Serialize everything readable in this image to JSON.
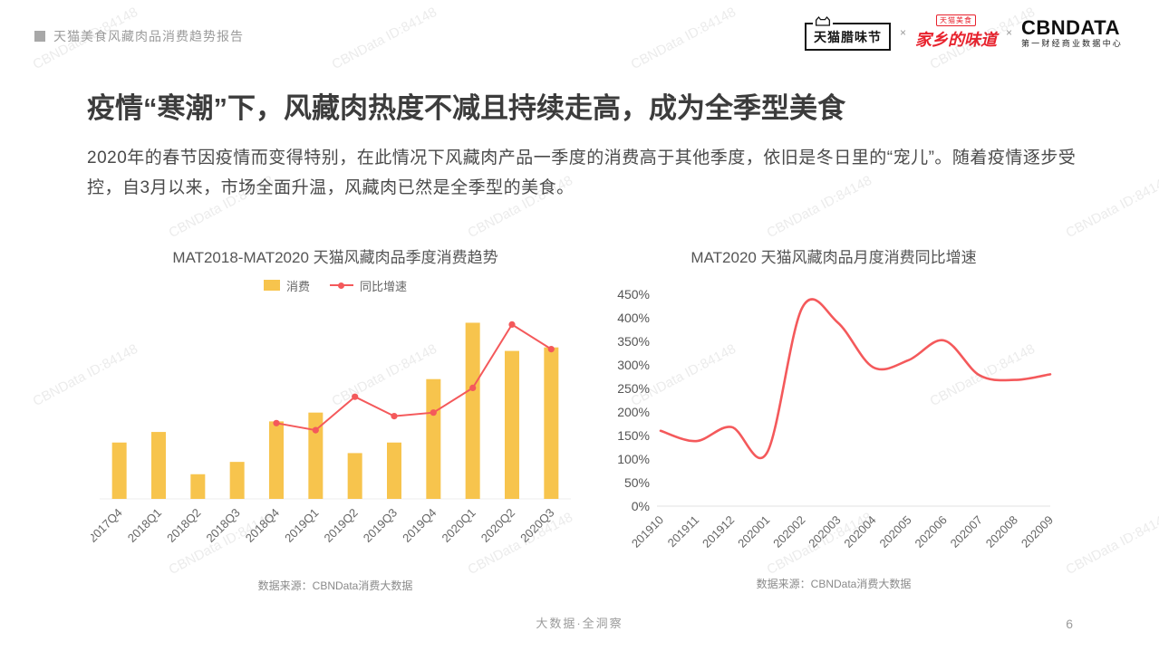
{
  "header": {
    "report_title": "天猫美食风藏肉品消费趋势报告"
  },
  "logos": {
    "tmall_festival": "天猫腊味节",
    "multiply": "×",
    "hometown_tag": "天猫美食",
    "hometown": "家乡的味道",
    "cbndata": "CBNDATA",
    "cbndata_subtitle": "第一财经商业数据中心"
  },
  "headline": {
    "title": "疫情“寒潮”下，风藏肉热度不减且持续走高，成为全季型美食",
    "body": "2020年的春节因疫情而变得特别，在此情况下风藏肉产品一季度的消费高于其他季度，依旧是冬日里的“宠儿”。随着疫情逐步受控，自3月以来，市场全面升温，风藏肉已然是全季型的美食。"
  },
  "footer": {
    "slogan": "大数据·全洞察",
    "page_number": "6"
  },
  "watermark": "CBNData ID:84148",
  "chart_data": [
    {
      "type": "bar",
      "title": "MAT2018-MAT2020 天猫风藏肉品季度消费趋势",
      "categories": [
        "2017Q4",
        "2018Q1",
        "2018Q2",
        "2018Q3",
        "2018Q4",
        "2019Q1",
        "2019Q2",
        "2019Q3",
        "2019Q4",
        "2020Q1",
        "2020Q2",
        "2020Q3"
      ],
      "series": [
        {
          "name": "消费",
          "type": "bar",
          "color": "#F7C44D",
          "values": [
            32,
            38,
            14,
            21,
            44,
            49,
            26,
            32,
            68,
            100,
            84,
            86
          ]
        },
        {
          "name": "同比增速",
          "type": "line",
          "color": "#F4595B",
          "values": [
            null,
            null,
            null,
            null,
            43,
            39,
            58,
            47,
            49,
            63,
            99,
            85
          ]
        }
      ],
      "bar_ylim": [
        0,
        110
      ],
      "line_ylim": [
        0,
        110
      ],
      "xlabel": "",
      "ylabel": "",
      "grid": false,
      "legend_position": "top",
      "source": "数据来源：CBNData消费大数据"
    },
    {
      "type": "line",
      "title": "MAT2020 天猫风藏肉品月度消费同比增速",
      "x": [
        "201910",
        "201911",
        "201912",
        "202001",
        "202002",
        "202003",
        "202004",
        "202005",
        "202006",
        "202007",
        "202008",
        "202009"
      ],
      "values": [
        160,
        138,
        168,
        113,
        422,
        390,
        295,
        310,
        352,
        278,
        268,
        280
      ],
      "unit": "%",
      "ylim": [
        0,
        450
      ],
      "ytick_step": 50,
      "ytick_labels": [
        "0%",
        "50%",
        "100%",
        "150%",
        "200%",
        "250%",
        "300%",
        "350%",
        "400%",
        "450%"
      ],
      "color": "#F4595B",
      "smooth": true,
      "grid": false,
      "source": "数据来源：CBNData消费大数据"
    }
  ]
}
